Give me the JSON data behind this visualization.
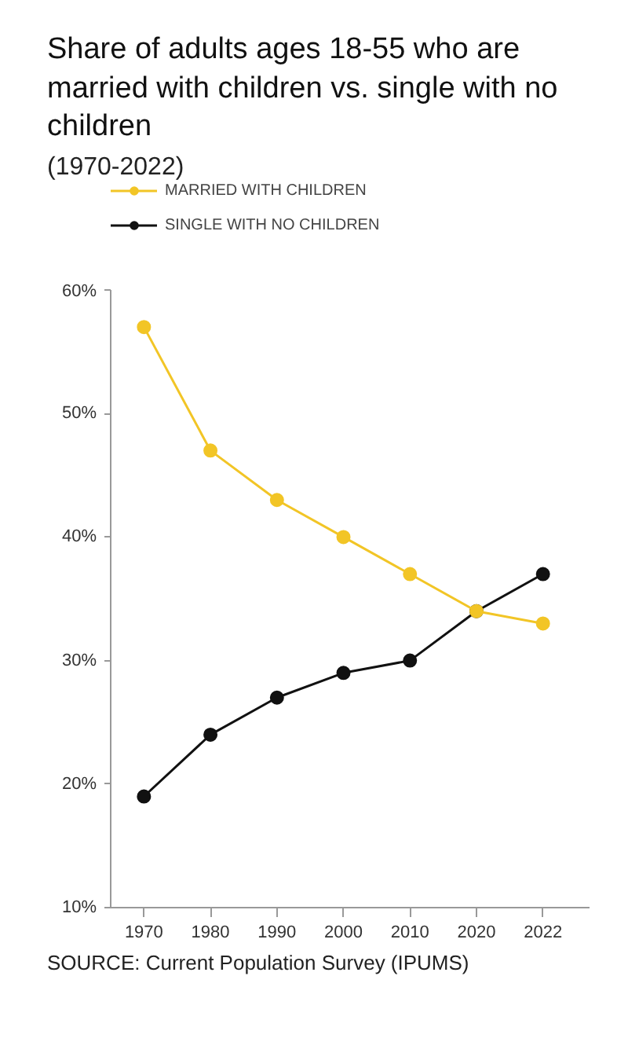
{
  "chart_data": {
    "type": "line",
    "title": "Share of adults ages 18-55 who are married with children vs. single with no children",
    "subtitle": "(1970-2022)",
    "categories": [
      "1970",
      "1980",
      "1990",
      "2000",
      "2010",
      "2020",
      "2022"
    ],
    "series": [
      {
        "name": "MARRIED WITH CHILDREN",
        "color": "#f2c526",
        "values": [
          57,
          47,
          43,
          40,
          37,
          34,
          33
        ]
      },
      {
        "name": "SINGLE WITH NO CHILDREN",
        "color": "#111111",
        "values": [
          19,
          24,
          27,
          29,
          30,
          34,
          37
        ]
      }
    ],
    "ylim": [
      10,
      60
    ],
    "yticks": [
      {
        "value": 10,
        "label": "10%"
      },
      {
        "value": 20,
        "label": "20%"
      },
      {
        "value": 30,
        "label": "30%"
      },
      {
        "value": 40,
        "label": "40%"
      },
      {
        "value": 50,
        "label": "50%"
      },
      {
        "value": 60,
        "label": "60%"
      }
    ],
    "grid": false,
    "legend": "top left",
    "marker": "circle",
    "line_style": "solid",
    "annotations": [
      "SOURCE: Current Population Survey (IPUMS)"
    ]
  }
}
